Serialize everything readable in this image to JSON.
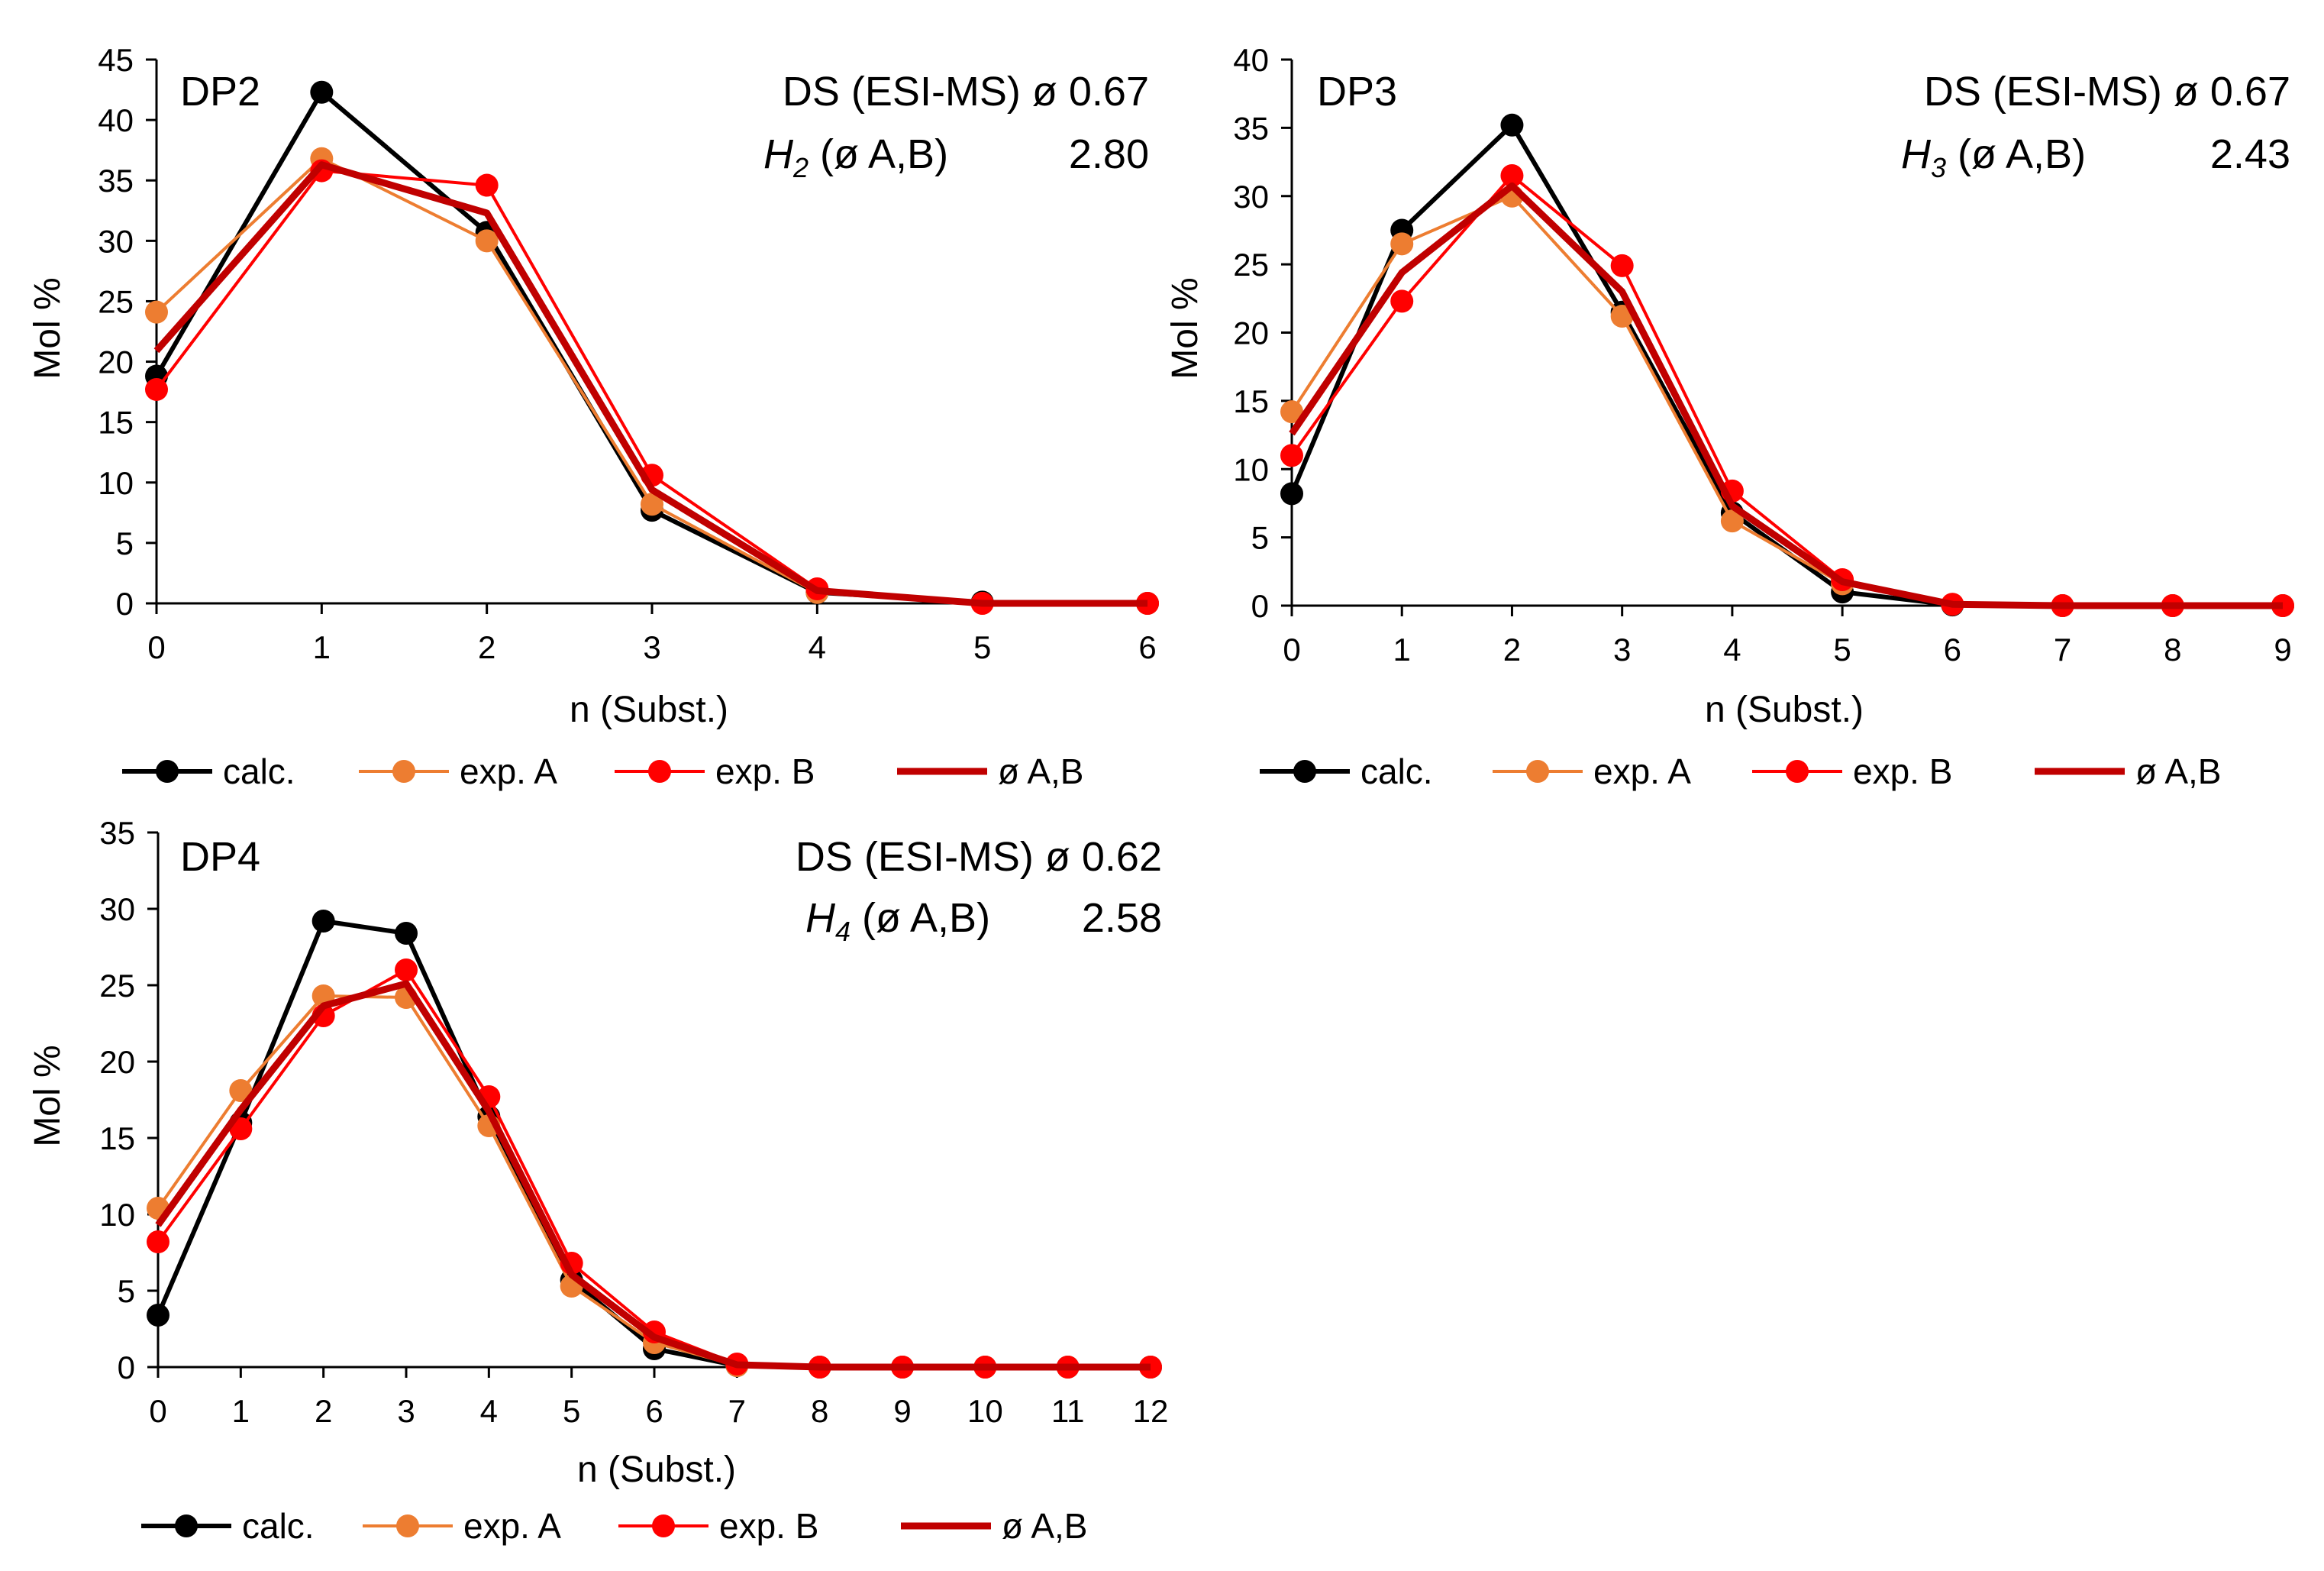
{
  "colors": {
    "calc": "#000000",
    "expA": "#ED7D31",
    "expB": "#FF0000",
    "avg": "#C00000",
    "axis": "#000000"
  },
  "chart_data": [
    {
      "id": "dp2",
      "type": "line",
      "title": "DP2",
      "ds_label": "DS (ESI-MS) ø 0.67",
      "h_sym": "H",
      "h_sub": "2",
      "h_rest": " (ø A,B)",
      "h_value": "2.80",
      "xlabel": "n (Subst.)",
      "ylabel": "Mol %",
      "xlim": [
        0,
        6
      ],
      "ylim": [
        0,
        45
      ],
      "ystep": 5,
      "x": [
        0,
        1,
        2,
        3,
        4,
        5,
        6
      ],
      "series": [
        {
          "name": "calc.",
          "key": "calc",
          "values": [
            18.8,
            42.3,
            30.7,
            7.7,
            0.9,
            0.1,
            0.0
          ]
        },
        {
          "name": "exp. A",
          "key": "expA",
          "values": [
            24.1,
            36.8,
            30.0,
            8.2,
            0.9,
            0.0,
            0.0
          ]
        },
        {
          "name": "exp.  B",
          "key": "expB",
          "values": [
            17.7,
            35.8,
            34.6,
            10.6,
            1.2,
            0.0,
            0.0
          ]
        },
        {
          "name": "ø A,B",
          "key": "avg",
          "values": [
            20.9,
            36.3,
            32.3,
            9.4,
            1.05,
            0.0,
            0.0
          ]
        }
      ]
    },
    {
      "id": "dp3",
      "type": "line",
      "title": "DP3",
      "ds_label": "DS (ESI-MS)  ø 0.67",
      "h_sym": "H",
      "h_sub": "3",
      "h_rest": " (ø A,B)",
      "h_value": "2.43",
      "xlabel": "n (Subst.)",
      "ylabel": "Mol %",
      "xlim": [
        0,
        9
      ],
      "ylim": [
        0,
        40
      ],
      "ystep": 5,
      "x": [
        0,
        1,
        2,
        3,
        4,
        5,
        6,
        7,
        8,
        9
      ],
      "series": [
        {
          "name": "calc.",
          "key": "calc",
          "values": [
            8.2,
            27.5,
            35.2,
            21.5,
            6.8,
            1.0,
            0.05,
            0.0,
            0.0,
            0.0
          ]
        },
        {
          "name": "exp. A",
          "key": "expA",
          "values": [
            14.2,
            26.5,
            30.0,
            21.2,
            6.2,
            1.6,
            0.1,
            0.0,
            0.0,
            0.0
          ]
        },
        {
          "name": "exp.  B",
          "key": "expB",
          "values": [
            11.0,
            22.3,
            31.5,
            24.9,
            8.4,
            1.9,
            0.1,
            0.0,
            0.0,
            0.0
          ]
        },
        {
          "name": "ø A,B",
          "key": "avg",
          "values": [
            12.6,
            24.4,
            30.75,
            23.0,
            7.3,
            1.75,
            0.1,
            0.0,
            0.0,
            0.0
          ]
        }
      ]
    },
    {
      "id": "dp4",
      "type": "line",
      "title": "DP4",
      "ds_label": "DS (ESI-MS) ø 0.62",
      "h_sym": "H",
      "h_sub": "4",
      "h_rest": " (ø A,B)",
      "h_value": "2.58",
      "xlabel": "n (Subst.)",
      "ylabel": "Mol %",
      "xlim": [
        0,
        12
      ],
      "ylim": [
        0,
        35
      ],
      "ystep": 5,
      "x": [
        0,
        1,
        2,
        3,
        4,
        5,
        6,
        7,
        8,
        9,
        10,
        11,
        12
      ],
      "series": [
        {
          "name": "calc.",
          "key": "calc",
          "values": [
            3.4,
            16.0,
            29.2,
            28.4,
            16.4,
            5.7,
            1.2,
            0.1,
            0.0,
            0.0,
            0.0,
            0.0,
            0.0
          ]
        },
        {
          "name": "exp. A",
          "key": "expA",
          "values": [
            10.4,
            18.1,
            24.3,
            24.2,
            15.8,
            5.3,
            1.6,
            0.1,
            0.0,
            0.0,
            0.0,
            0.0,
            0.0
          ]
        },
        {
          "name": "exp.  B",
          "key": "expB",
          "values": [
            8.2,
            15.6,
            23.0,
            26.0,
            17.7,
            6.8,
            2.3,
            0.2,
            0.0,
            0.0,
            0.0,
            0.0,
            0.0
          ]
        },
        {
          "name": "ø A,B",
          "key": "avg",
          "values": [
            9.3,
            16.85,
            23.65,
            25.1,
            16.75,
            6.05,
            1.95,
            0.15,
            0.0,
            0.0,
            0.0,
            0.0,
            0.0
          ]
        }
      ]
    }
  ]
}
